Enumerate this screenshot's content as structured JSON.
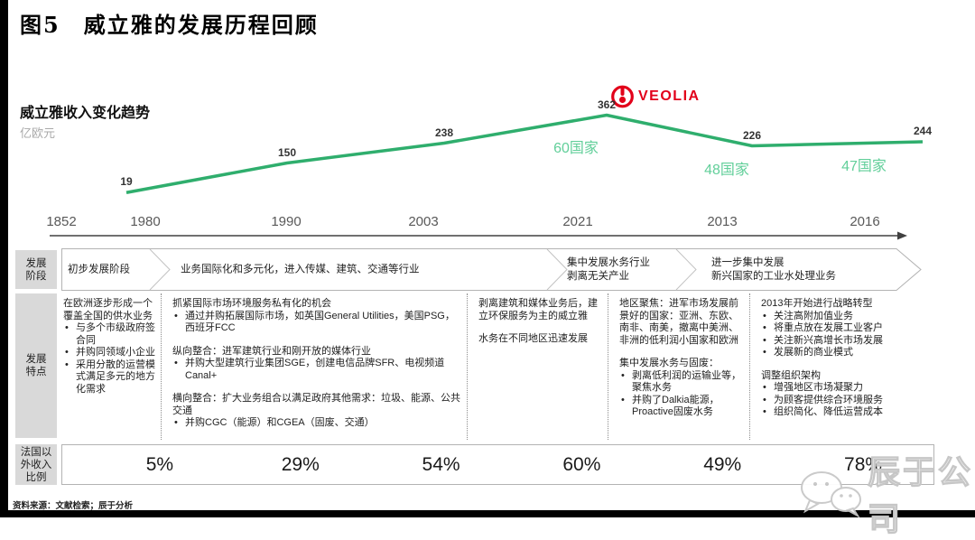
{
  "title": "图5　威立雅的发展历程回顾",
  "chart": {
    "subtitle": "威立雅收入变化趋势",
    "unit": "亿欧元",
    "logo_text": "VEOLIA",
    "logo_color": "#e2001a"
  },
  "chart_data": {
    "type": "line",
    "title": "威立雅收入变化趋势",
    "ylabel": "亿欧元",
    "axis_years": [
      "1852",
      "1980",
      "1990",
      "2003",
      "2021",
      "2013",
      "2016"
    ],
    "points": [
      {
        "year": "1980",
        "value": 19
      },
      {
        "year": "1990",
        "value": 150
      },
      {
        "year": "2003",
        "value": 238
      },
      {
        "year": "2021",
        "value": 362
      },
      {
        "year": "2013",
        "value": 226
      },
      {
        "year": "2016",
        "value": 244
      }
    ],
    "annotations": [
      "60国家",
      "48国家",
      "47国家"
    ],
    "line_color": "#2fae6d",
    "annotation_color": "#62cf9a",
    "axis_arrow": true,
    "grid": false
  },
  "stages": {
    "label": "发展\n阶段",
    "segments": [
      "初步发展阶段",
      "业务国际化和多元化，进入传媒、建筑、交通等行业",
      "集中发展水务行业\n剥离无关产业",
      "进一步集中发展\n新兴国家的工业水处理业务"
    ]
  },
  "features": {
    "label": "发展\n特点",
    "columns": [
      [
        {
          "t": "在欧洲逐步形成一个覆盖全国的供水业务"
        },
        {
          "b": true,
          "t": "与多个市级政府签合同"
        },
        {
          "b": true,
          "t": "并购同领域小企业"
        },
        {
          "b": true,
          "t": "采用分散的运营模式满足多元的地方化需求"
        }
      ],
      [
        {
          "t": "抓紧国际市场环境服务私有化的机会"
        },
        {
          "b": true,
          "t": "通过并购拓展国际市场，如英国General Utilities，美国PSG，西班牙FCC"
        },
        {
          "gap": true
        },
        {
          "t": "纵向整合：进军建筑行业和刚开放的媒体行业"
        },
        {
          "b": true,
          "t": "并购大型建筑行业集团SGE，创建电信品牌SFR、电视频道Canal+"
        },
        {
          "gap": true
        },
        {
          "t": "横向整合：扩大业务组合以满足政府其他需求：垃圾、能源、公共交通"
        },
        {
          "b": true,
          "t": "并购CGC（能源）和CGEA（固废、交通）"
        }
      ],
      [
        {
          "t": "剥离建筑和媒体业务后，建立环保服务为主的威立雅"
        },
        {
          "gap": true
        },
        {
          "t": "水务在不同地区迅速发展"
        }
      ],
      [
        {
          "t": "地区聚焦：进军市场发展前景好的国家：亚洲、东欧、南非、南美，撤离中美洲、非洲的低利润小国家和欧洲"
        },
        {
          "gap": true
        },
        {
          "t": "集中发展水务与固废："
        },
        {
          "b": true,
          "t": "剥离低利润的运输业等，聚焦水务"
        },
        {
          "b": true,
          "t": "并购了Dalkia能源，Proactive固废水务"
        }
      ],
      [
        {
          "t": "2013年开始进行战略转型"
        },
        {
          "b": true,
          "t": "关注高附加值业务"
        },
        {
          "b": true,
          "t": "将重点放在发展工业客户"
        },
        {
          "b": true,
          "t": "关注新兴高增长市场发展"
        },
        {
          "b": true,
          "t": "发展新的商业模式"
        },
        {
          "gap": true
        },
        {
          "t": "调整组织架构"
        },
        {
          "b": true,
          "t": "增强地区市场凝聚力"
        },
        {
          "b": true,
          "t": "为顾客提供综合环境服务"
        },
        {
          "b": true,
          "t": "组织简化、降低运营成本"
        }
      ]
    ]
  },
  "revenue_share": {
    "label": "法国以\n外收入\n比例",
    "values": [
      "5%",
      "29%",
      "54%",
      "60%",
      "49%",
      "78%"
    ]
  },
  "source": "资料来源：文献检索；辰于分析",
  "watermark": "辰于公司"
}
